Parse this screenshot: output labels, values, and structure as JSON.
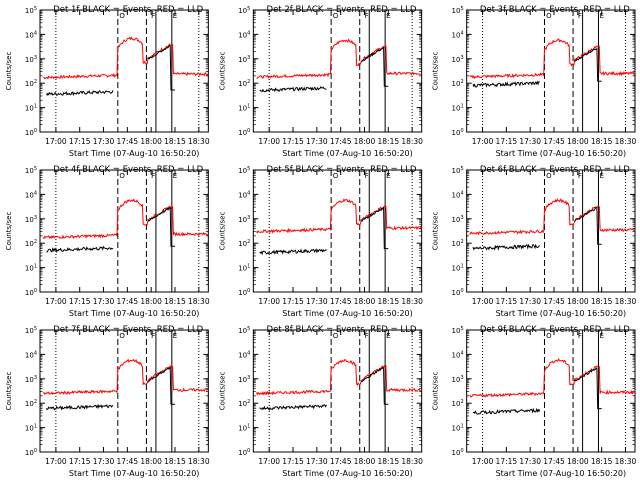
{
  "chart_data": [
    {
      "type": "line",
      "title": "Det 1f BLACK = Events, RED = LLD",
      "xlabel": "Start Time (07-Aug-10 16:50:20)",
      "ylabel": "Counts/sec",
      "x_ticks": [
        "17:00",
        "17:15",
        "17:30",
        "17:45",
        "18:00",
        "18:15",
        "18:30"
      ],
      "xlim": [
        "16:50",
        "18:36"
      ],
      "ylim": [
        1,
        100000
      ],
      "y_scale": "log",
      "grid": false,
      "y_tick_exponents": [
        0,
        1,
        2,
        3,
        4,
        5
      ],
      "series": [
        {
          "color": "#000000",
          "level_before": 35,
          "plateau": null
        },
        {
          "color": "#ff0000",
          "level_before": 170,
          "plateau": 6000
        }
      ]
    },
    {
      "type": "line",
      "title": "Det 2f BLACK = Events, RED = LLD",
      "xlabel": "Start Time (07-Aug-10 16:50:20)",
      "ylabel": "Counts/sec",
      "x_ticks": [
        "17:00",
        "17:15",
        "17:30",
        "17:45",
        "18:00",
        "18:15",
        "18:30"
      ],
      "xlim": [
        "16:50",
        "18:36"
      ],
      "ylim": [
        1,
        100000
      ],
      "y_scale": "log",
      "grid": false,
      "y_tick_exponents": [
        0,
        1,
        2,
        3,
        4,
        5
      ],
      "series": [
        {
          "color": "#000000",
          "level_before": 50,
          "plateau": null
        },
        {
          "color": "#ff0000",
          "level_before": 180,
          "plateau": 5000
        }
      ]
    },
    {
      "type": "line",
      "title": "Det 3f BLACK = Events, RED = LLD",
      "xlabel": "Start Time (07-Aug-10 16:50:20)",
      "ylabel": "Counts/sec",
      "x_ticks": [
        "17:00",
        "17:15",
        "17:30",
        "17:45",
        "18:00",
        "18:15",
        "18:30"
      ],
      "xlim": [
        "16:50",
        "18:36"
      ],
      "ylim": [
        1,
        100000
      ],
      "y_scale": "log",
      "grid": false,
      "y_tick_exponents": [
        0,
        1,
        2,
        3,
        4,
        5
      ],
      "series": [
        {
          "color": "#000000",
          "level_before": 80,
          "plateau": null
        },
        {
          "color": "#ff0000",
          "level_before": 180,
          "plateau": 5000
        }
      ]
    },
    {
      "type": "line",
      "title": "Det 4f BLACK = Events, RED = LLD",
      "xlabel": "Start Time (07-Aug-10 16:50:20)",
      "ylabel": "Counts/sec",
      "x_ticks": [
        "17:00",
        "17:15",
        "17:30",
        "17:45",
        "18:00",
        "18:15",
        "18:30"
      ],
      "xlim": [
        "16:50",
        "18:36"
      ],
      "ylim": [
        1,
        100000
      ],
      "y_scale": "log",
      "grid": false,
      "y_tick_exponents": [
        0,
        1,
        2,
        3,
        4,
        5
      ],
      "series": [
        {
          "color": "#000000",
          "level_before": 50,
          "plateau": null
        },
        {
          "color": "#ff0000",
          "level_before": 170,
          "plateau": 5000
        }
      ]
    },
    {
      "type": "line",
      "title": "Det 5f BLACK = Events, RED = LLD",
      "xlabel": "Start Time (07-Aug-10 16:50:20)",
      "ylabel": "Counts/sec",
      "x_ticks": [
        "17:00",
        "17:15",
        "17:30",
        "17:45",
        "18:00",
        "18:15",
        "18:30"
      ],
      "xlim": [
        "16:50",
        "18:36"
      ],
      "ylim": [
        1,
        100000
      ],
      "y_scale": "log",
      "grid": false,
      "y_tick_exponents": [
        0,
        1,
        2,
        3,
        4,
        5
      ],
      "series": [
        {
          "color": "#000000",
          "level_before": 40,
          "plateau": null
        },
        {
          "color": "#ff0000",
          "level_before": 300,
          "plateau": 5000
        }
      ]
    },
    {
      "type": "line",
      "title": "Det 6f BLACK = Events, RED = LLD",
      "xlabel": "Start Time (07-Aug-10 16:50:20)",
      "ylabel": "Counts/sec",
      "x_ticks": [
        "17:00",
        "17:15",
        "17:30",
        "17:45",
        "18:00",
        "18:15",
        "18:30"
      ],
      "xlim": [
        "16:50",
        "18:36"
      ],
      "ylim": [
        1,
        100000
      ],
      "y_scale": "log",
      "grid": false,
      "y_tick_exponents": [
        0,
        1,
        2,
        3,
        4,
        5
      ],
      "series": [
        {
          "color": "#000000",
          "level_before": 60,
          "plateau": null
        },
        {
          "color": "#ff0000",
          "level_before": 250,
          "plateau": 5000
        }
      ]
    },
    {
      "type": "line",
      "title": "Det 7f BLACK = Events, RED = LLD",
      "xlabel": "Start Time (07-Aug-10 16:50:20)",
      "ylabel": "Counts/sec",
      "x_ticks": [
        "17:00",
        "17:15",
        "17:30",
        "17:45",
        "18:00",
        "18:15",
        "18:30"
      ],
      "xlim": [
        "16:50",
        "18:36"
      ],
      "ylim": [
        1,
        100000
      ],
      "y_scale": "log",
      "grid": false,
      "y_tick_exponents": [
        0,
        1,
        2,
        3,
        4,
        5
      ],
      "series": [
        {
          "color": "#000000",
          "level_before": 60,
          "plateau": null
        },
        {
          "color": "#ff0000",
          "level_before": 250,
          "plateau": 5000
        }
      ]
    },
    {
      "type": "line",
      "title": "Det 8f BLACK = Events, RED = LLD",
      "xlabel": "Start Time (07-Aug-10 16:50:20)",
      "ylabel": "Counts/sec",
      "x_ticks": [
        "17:00",
        "17:15",
        "17:30",
        "17:45",
        "18:00",
        "18:15",
        "18:30"
      ],
      "xlim": [
        "16:50",
        "18:36"
      ],
      "ylim": [
        1,
        100000
      ],
      "y_scale": "log",
      "grid": false,
      "y_tick_exponents": [
        0,
        1,
        2,
        3,
        4,
        5
      ],
      "series": [
        {
          "color": "#000000",
          "level_before": 60,
          "plateau": null
        },
        {
          "color": "#ff0000",
          "level_before": 250,
          "plateau": 5000
        }
      ]
    },
    {
      "type": "line",
      "title": "Det 9f BLACK = Events, RED = LLD",
      "xlabel": "Start Time (07-Aug-10 16:50:20)",
      "ylabel": "Counts/sec",
      "x_ticks": [
        "17:00",
        "17:15",
        "17:30",
        "17:45",
        "18:00",
        "18:15",
        "18:30"
      ],
      "xlim": [
        "16:50",
        "18:36"
      ],
      "ylim": [
        1,
        100000
      ],
      "y_scale": "log",
      "grid": false,
      "y_tick_exponents": [
        0,
        1,
        2,
        3,
        4,
        5
      ],
      "series": [
        {
          "color": "#000000",
          "level_before": 40,
          "plateau": null
        },
        {
          "color": "#ff0000",
          "level_before": 200,
          "plateau": 5000
        }
      ]
    }
  ]
}
